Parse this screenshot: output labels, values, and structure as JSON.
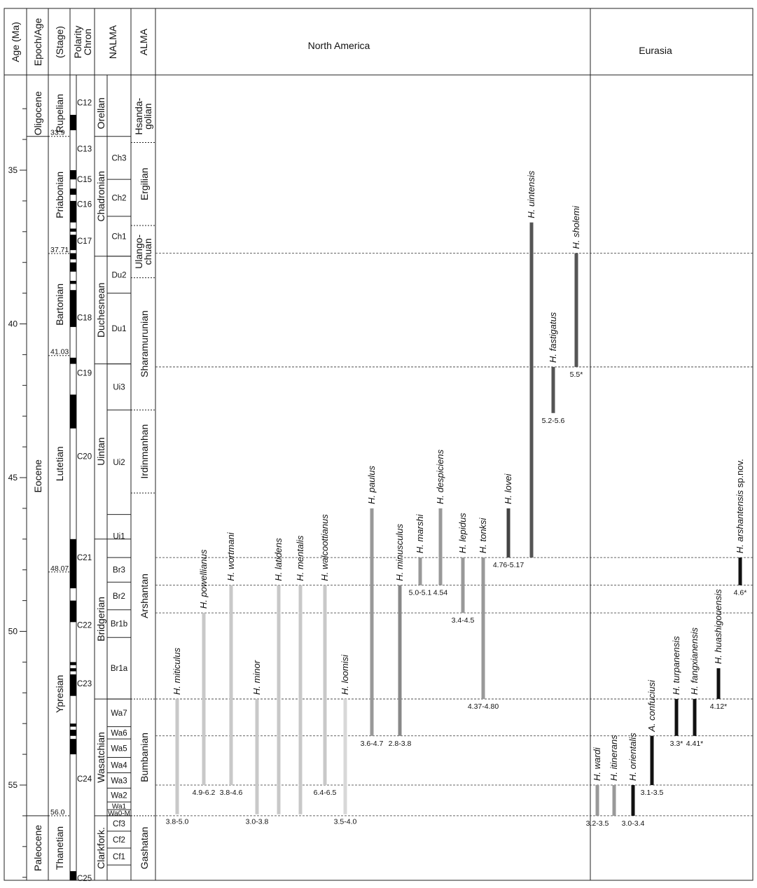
{
  "headers": {
    "age": "Age (Ma)",
    "epoch": "Epoch/Age",
    "stage": "(Stage)",
    "polarity_1": "Polarity",
    "polarity_2": "Chron",
    "nalma": "NALMA",
    "alma": "ALMA",
    "north_america": "North America",
    "eurasia": "Eurasia"
  },
  "age_axis": {
    "ticks": [
      35,
      40,
      45,
      50,
      55
    ]
  },
  "epochs": [
    {
      "name": "Oligocene",
      "top": 32.4,
      "bottom": 33.9
    },
    {
      "name": "Eocene",
      "top": 33.9,
      "bottom": 56.0
    },
    {
      "name": "Paleocene",
      "top": 56.0,
      "bottom": 58.2
    }
  ],
  "stages": [
    {
      "name": "Rupelian",
      "top": 32.4,
      "bottom": 33.9,
      "base_label": "33.9"
    },
    {
      "name": "Priabonian",
      "top": 33.9,
      "bottom": 37.71,
      "base_label": "37.71"
    },
    {
      "name": "Bartonian",
      "top": 37.71,
      "bottom": 41.03,
      "base_label": "41.03"
    },
    {
      "name": "Lutetian",
      "top": 41.03,
      "bottom": 48.07,
      "base_label": "48.07"
    },
    {
      "name": "Ypresian",
      "top": 48.07,
      "bottom": 56.0,
      "base_label": "56.0"
    },
    {
      "name": "Thanetian",
      "top": 56.0,
      "bottom": 58.2,
      "base_label": ""
    }
  ],
  "chrons": [
    {
      "name": "C12",
      "age": 32.8
    },
    {
      "name": "C13",
      "age": 34.3
    },
    {
      "name": "C15",
      "age": 35.3
    },
    {
      "name": "C16",
      "age": 36.1
    },
    {
      "name": "C17",
      "age": 37.3
    },
    {
      "name": "C18",
      "age": 39.8
    },
    {
      "name": "C19",
      "age": 41.6
    },
    {
      "name": "C20",
      "age": 44.3
    },
    {
      "name": "C21",
      "age": 47.6
    },
    {
      "name": "C22",
      "age": 49.8
    },
    {
      "name": "C23",
      "age": 51.7
    },
    {
      "name": "C24",
      "age": 54.8
    },
    {
      "name": "C25",
      "age": 58.2
    }
  ],
  "polarity_normal": [
    [
      33.2,
      33.7
    ],
    [
      35.0,
      35.3
    ],
    [
      35.6,
      35.8
    ],
    [
      36.0,
      36.7
    ],
    [
      36.9,
      37.0
    ],
    [
      37.1,
      37.6
    ],
    [
      37.7,
      37.9
    ],
    [
      38.0,
      38.3
    ],
    [
      38.6,
      38.7
    ],
    [
      38.9,
      40.1
    ],
    [
      41.1,
      41.3
    ],
    [
      42.3,
      43.4
    ],
    [
      47.0,
      48.6
    ],
    [
      49.0,
      49.7
    ],
    [
      51.0,
      51.1
    ],
    [
      51.2,
      51.3
    ],
    [
      51.4,
      52.1
    ],
    [
      53.0,
      53.1
    ],
    [
      53.2,
      53.4
    ],
    [
      53.5,
      54.0
    ],
    [
      57.8,
      58.3
    ]
  ],
  "nalma": [
    {
      "name": "Orellan",
      "top": 32.4,
      "bottom": 33.9
    },
    {
      "name": "Chadronian",
      "top": 33.9,
      "bottom": 37.8
    },
    {
      "name": "Duchesnean",
      "top": 37.8,
      "bottom": 41.3
    },
    {
      "name": "Uintan",
      "top": 41.3,
      "bottom": 47.0
    },
    {
      "name": "Bridgerian",
      "top": 47.0,
      "bottom": 52.2
    },
    {
      "name": "Wasatchian",
      "top": 52.2,
      "bottom": 56.0
    },
    {
      "name": "Clarkfork.",
      "top": 56.0,
      "bottom": 58.2
    }
  ],
  "subzones": [
    {
      "name": "Ch3",
      "top": 33.9,
      "bottom": 35.3
    },
    {
      "name": "Ch2",
      "top": 35.3,
      "bottom": 36.5
    },
    {
      "name": "Ch1",
      "top": 36.5,
      "bottom": 37.8
    },
    {
      "name": "Du2",
      "top": 37.8,
      "bottom": 39.0
    },
    {
      "name": "Du1",
      "top": 39.0,
      "bottom": 41.3
    },
    {
      "name": "Ui3",
      "top": 41.3,
      "bottom": 42.8
    },
    {
      "name": "Ui2",
      "top": 42.8,
      "bottom": 46.2
    },
    {
      "name": "Ui1",
      "top": 46.2,
      "bottom": 47.6
    },
    {
      "name": "Br3",
      "top": 47.6,
      "bottom": 48.4
    },
    {
      "name": "Br2",
      "top": 48.4,
      "bottom": 49.3
    },
    {
      "name": "Br1b",
      "top": 49.3,
      "bottom": 50.2
    },
    {
      "name": "Br1a",
      "top": 50.2,
      "bottom": 52.2
    },
    {
      "name": "Wa7",
      "top": 52.2,
      "bottom": 53.1
    },
    {
      "name": "Wa6",
      "top": 53.1,
      "bottom": 53.5
    },
    {
      "name": "Wa5",
      "top": 53.5,
      "bottom": 54.1
    },
    {
      "name": "Wa4",
      "top": 54.1,
      "bottom": 54.6
    },
    {
      "name": "Wa3",
      "top": 54.6,
      "bottom": 55.1
    },
    {
      "name": "Wa2",
      "top": 55.1,
      "bottom": 55.55
    },
    {
      "name": "Wa1",
      "top": 55.55,
      "bottom": 55.8
    },
    {
      "name": "Wa0-M",
      "top": 55.8,
      "bottom": 56.0
    },
    {
      "name": "Cf3",
      "top": 56.0,
      "bottom": 56.5
    },
    {
      "name": "Cf2",
      "top": 56.5,
      "bottom": 57.05
    },
    {
      "name": "Cf1",
      "top": 57.05,
      "bottom": 57.6
    }
  ],
  "alma": [
    {
      "name": "Hsanda-golian",
      "top": 32.4,
      "bottom": 34.1,
      "line1": "Hsanda-",
      "line2": "golian"
    },
    {
      "name": "Ergilian",
      "top": 34.1,
      "bottom": 36.8
    },
    {
      "name": "Ulango-chuan",
      "top": 36.8,
      "bottom": 38.5,
      "line1": "Ulango-",
      "line2": "chuan"
    },
    {
      "name": "Sharamurunian",
      "top": 38.5,
      "bottom": 42.8
    },
    {
      "name": "Irdinmanhan",
      "top": 42.8,
      "bottom": 45.5
    },
    {
      "name": "Arshantan",
      "top": 45.5,
      "bottom": 52.2
    },
    {
      "name": "Bumbanian",
      "top": 52.2,
      "bottom": 56.0
    },
    {
      "name": "Gashatan",
      "top": 56.0,
      "bottom": 58.2
    }
  ],
  "correlation_lines": [
    37.7,
    41.4,
    47.6,
    48.5,
    49.4,
    52.2,
    53.4,
    55.0,
    56.0
  ],
  "taxa": [
    {
      "label": "H. miticulus",
      "region": "North America",
      "top": 52.2,
      "bottom": 55.95,
      "shade": "#c8c8c8",
      "size": "3.8-5.0"
    },
    {
      "label": "H. powellianus",
      "region": "North America",
      "top": 49.4,
      "bottom": 55.0,
      "shade": "#c8c8c8",
      "size": "4.9-6.2"
    },
    {
      "label": "H. wortmani",
      "region": "North America",
      "top": 48.5,
      "bottom": 55.0,
      "shade": "#c8c8c8",
      "size": "3.8-4.6"
    },
    {
      "label": "H. minor",
      "region": "North America",
      "top": 52.2,
      "bottom": 55.95,
      "shade": "#c8c8c8",
      "size": "3.0-3.8"
    },
    {
      "label": "H. latidens",
      "region": "North America",
      "top": 48.5,
      "bottom": 55.95,
      "shade": "#c8c8c8",
      "size": ""
    },
    {
      "label": "H. mentalis",
      "region": "North America",
      "top": 48.5,
      "bottom": 55.95,
      "shade": "#c8c8c8",
      "size": ""
    },
    {
      "label": "H. walcoottianus",
      "region": "North America",
      "top": 48.5,
      "bottom": 55.0,
      "shade": "#c8c8c8",
      "size": "6.4-6.5"
    },
    {
      "label": "H. loomisi",
      "region": "North America",
      "top": 52.2,
      "bottom": 55.95,
      "shade": "#d8d8d8",
      "size": "3.5-4.0"
    },
    {
      "label": "H. paulus",
      "region": "North America",
      "top": 46.0,
      "bottom": 53.4,
      "shade": "#999999",
      "size": "3.6-4.7"
    },
    {
      "label": "H. minusculus",
      "region": "North America",
      "top": 48.5,
      "bottom": 53.4,
      "shade": "#888888",
      "size": "2.8-3.8"
    },
    {
      "label": "H. marshi",
      "region": "North America",
      "top": 47.6,
      "bottom": 48.5,
      "shade": "#999999",
      "size": "5.0-5.1"
    },
    {
      "label": "H. despiciens",
      "region": "North America",
      "top": 46.0,
      "bottom": 48.5,
      "shade": "#999999",
      "size": "4.54"
    },
    {
      "label": "H. lepidus",
      "region": "North America",
      "top": 47.6,
      "bottom": 49.4,
      "shade": "#999999",
      "size": "3.4-4.5"
    },
    {
      "label": "H. tonksi",
      "region": "North America",
      "top": 47.6,
      "bottom": 52.2,
      "shade": "#999999",
      "size": "4.37-4.80"
    },
    {
      "label": "H. lovei",
      "region": "North America",
      "top": 46.0,
      "bottom": 47.6,
      "shade": "#444444",
      "size": "4.76-5.17"
    },
    {
      "label": "H. uintensis",
      "region": "North America",
      "top": 36.7,
      "bottom": 47.6,
      "shade": "#555555",
      "size": ""
    },
    {
      "label": "H. fastigatus",
      "region": "North America",
      "top": 41.4,
      "bottom": 42.9,
      "shade": "#555555",
      "size": "5.2-5.6"
    },
    {
      "label": "H. sholemi",
      "region": "North America",
      "top": 37.7,
      "bottom": 41.4,
      "shade": "#555555",
      "size": "5.5*"
    },
    {
      "label": "H. wardi",
      "region": "Eurasia",
      "top": 55.0,
      "bottom": 56.0,
      "shade": "#999999",
      "size": "3.2-3.5"
    },
    {
      "label": "H. itinerans",
      "region": "Eurasia",
      "top": 55.0,
      "bottom": 56.0,
      "shade": "#999999",
      "size": ""
    },
    {
      "label": "H. orientalis",
      "region": "Eurasia",
      "top": 55.0,
      "bottom": 56.0,
      "shade": "#111111",
      "size": "3.0-3.4"
    },
    {
      "label": "A. confuciusi",
      "region": "Eurasia",
      "top": 53.4,
      "bottom": 55.0,
      "shade": "#111111",
      "size": "3.1-3.5"
    },
    {
      "label": "H. turpanensis",
      "region": "Eurasia",
      "top": 52.2,
      "bottom": 53.4,
      "shade": "#111111",
      "size": "3.3*"
    },
    {
      "label": "H. fangxianensis",
      "region": "Eurasia",
      "top": 52.2,
      "bottom": 53.4,
      "shade": "#111111",
      "size": "4.41*"
    },
    {
      "label": "H. huashigouensis",
      "region": "Eurasia",
      "top": 51.2,
      "bottom": 52.2,
      "shade": "#111111",
      "size": "4.12*"
    },
    {
      "label": "H. arshantensis sp.nov.",
      "label_sp": "H. arshantensis",
      "label_suffix": " sp.nov.",
      "region": "Eurasia",
      "top": 47.6,
      "bottom": 48.5,
      "shade": "#111111",
      "size": "4.6*"
    }
  ]
}
